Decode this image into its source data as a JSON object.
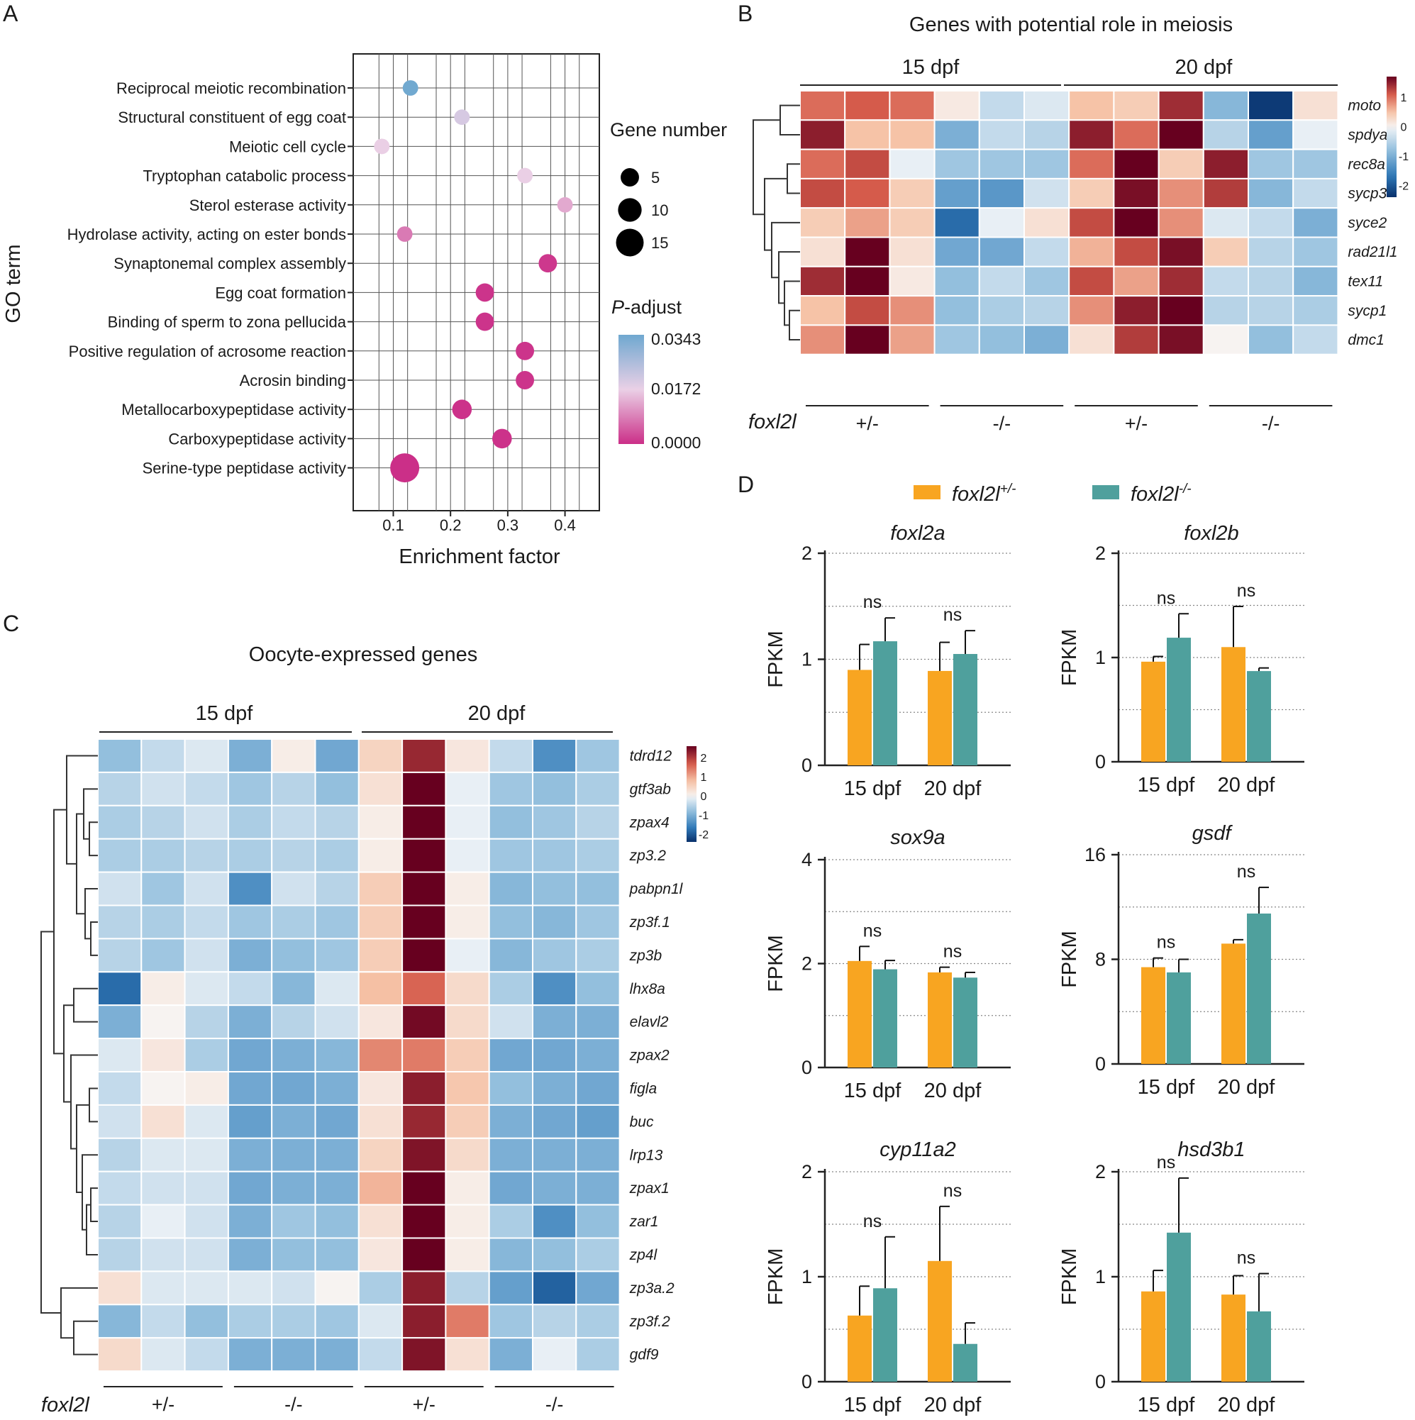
{
  "panel_labels": [
    "A",
    "B",
    "C",
    "D"
  ],
  "chart_data": [
    {
      "panel": "A",
      "type": "scatter",
      "xlabel": "Enrichment factor",
      "ylabel": "GO term",
      "xlim": [
        0.03,
        0.46
      ],
      "xticks": [
        "0.1",
        "0.2",
        "0.3",
        "0.4"
      ],
      "xtick_values": [
        0.1,
        0.2,
        0.3,
        0.4
      ],
      "grid": true,
      "categories": [
        "Reciprocal meiotic recombination",
        "Structural constituent of egg coat",
        "Meiotic cell cycle",
        "Tryptophan catabolic process",
        "Sterol esterase activity",
        "Hydrolase activity, acting on ester bonds",
        "Synaptonemal complex assembly",
        "Egg coat formation",
        "Binding of sperm to zona pellucida",
        "Positive regulation of acrosome reaction",
        "Acrosin binding",
        "Metallocarboxypeptidase activity",
        "Carboxypeptidase activity",
        "Serine-type peptidase activity"
      ],
      "x": [
        0.13,
        0.22,
        0.08,
        0.33,
        0.4,
        0.12,
        0.37,
        0.26,
        0.26,
        0.33,
        0.33,
        0.22,
        0.29,
        0.12
      ],
      "gene_number": [
        3,
        3,
        3,
        3,
        3,
        3,
        5,
        5,
        5,
        5,
        5,
        6,
        6,
        17
      ],
      "p_adjust": [
        0.034,
        0.02,
        0.017,
        0.017,
        0.013,
        0.008,
        0.001,
        0.0005,
        0.0005,
        0.0005,
        0.0005,
        0.0003,
        0.0003,
        0.0
      ],
      "size_legend": {
        "title": "Gene number",
        "values": [
          5,
          10,
          15
        ]
      },
      "color_legend": {
        "title_italic": "P",
        "title_rest": "-adjust",
        "values": [
          "0.0343",
          "0.0172",
          "0.0000"
        ],
        "colors": [
          "#6fa8d0",
          "#ead0e6",
          "#cb2f88"
        ]
      }
    },
    {
      "panel": "B",
      "type": "heatmap",
      "title": "Genes with potential role in meiosis",
      "group_labels": [
        "15 dpf",
        "20 dpf"
      ],
      "genotype_label": "foxl2l",
      "genotypes": [
        "+/-",
        "-/-",
        "+/-",
        "-/-"
      ],
      "rows": [
        "moto",
        "spdya",
        "rec8a",
        "sycp3",
        "syce2",
        "rad21l1",
        "tex11",
        "sycp1",
        "dmc1"
      ],
      "values": [
        [
          1.0,
          1.1,
          1.0,
          0.1,
          -0.4,
          -0.2,
          0.5,
          0.4,
          1.4,
          -0.9,
          -2.3,
          0.2
        ],
        [
          1.5,
          0.5,
          0.5,
          -1.0,
          -0.4,
          -0.5,
          1.5,
          1.0,
          1.8,
          -0.5,
          -1.2,
          -0.1
        ],
        [
          1.0,
          1.2,
          -0.1,
          -0.7,
          -0.7,
          -0.7,
          1.0,
          2.0,
          0.4,
          1.5,
          -0.7,
          -0.7
        ],
        [
          1.2,
          1.1,
          0.4,
          -1.2,
          -1.3,
          -0.3,
          0.4,
          1.6,
          0.8,
          1.3,
          -0.9,
          -0.4
        ],
        [
          0.4,
          0.7,
          0.4,
          -1.8,
          -0.1,
          0.2,
          1.2,
          2.5,
          0.8,
          -0.2,
          -0.4,
          -1.0
        ],
        [
          0.2,
          2.1,
          0.2,
          -1.1,
          -1.1,
          -0.4,
          0.6,
          1.2,
          1.6,
          0.4,
          -0.5,
          -0.7
        ],
        [
          1.4,
          2.3,
          0.1,
          -0.8,
          -0.4,
          -0.7,
          1.2,
          0.7,
          1.4,
          -0.4,
          -0.5,
          -0.9
        ],
        [
          0.5,
          1.2,
          0.8,
          -0.8,
          -0.6,
          -0.5,
          0.8,
          1.5,
          2.0,
          -0.5,
          -0.5,
          -0.6
        ],
        [
          0.8,
          1.8,
          0.7,
          -0.7,
          -0.8,
          -1.0,
          0.2,
          1.3,
          1.6,
          0.0,
          -0.8,
          -0.4
        ]
      ],
      "colorbar": {
        "ticks": [
          "1",
          "0",
          "-1",
          "-2"
        ],
        "values": [
          1,
          0,
          -1,
          -2
        ],
        "range": [
          -2.4,
          1.7
        ]
      }
    },
    {
      "panel": "C",
      "type": "heatmap",
      "title": "Oocyte-expressed genes",
      "group_labels": [
        "15 dpf",
        "20 dpf"
      ],
      "genotype_label": "foxl2l",
      "genotypes": [
        "+/-",
        "-/-",
        "+/-",
        "-/-"
      ],
      "rows": [
        "tdrd12",
        "gtf3ab",
        "zpax4",
        "zp3.2",
        "pabpn1l",
        "zp3f.1",
        "zp3b",
        "lhx8a",
        "elavl2",
        "zpax2",
        "figla",
        "buc",
        "lrp13",
        "zpax1",
        "zar1",
        "zp4l",
        "zp3a.2",
        "zp3f.2",
        "gdf9"
      ],
      "values": [
        [
          -0.8,
          -0.4,
          -0.2,
          -1.0,
          0.1,
          -1.1,
          0.5,
          2.2,
          0.2,
          -0.4,
          -1.4,
          -0.7
        ],
        [
          -0.5,
          -0.3,
          -0.4,
          -0.7,
          -0.5,
          -0.8,
          0.3,
          3.0,
          -0.1,
          -0.7,
          -0.8,
          -0.6
        ],
        [
          -0.6,
          -0.5,
          -0.3,
          -0.6,
          -0.4,
          -0.5,
          0.1,
          3.0,
          -0.1,
          -0.8,
          -0.7,
          -0.5
        ],
        [
          -0.6,
          -0.6,
          -0.5,
          -0.6,
          -0.5,
          -0.6,
          0.1,
          3.0,
          -0.1,
          -0.7,
          -0.7,
          -0.6
        ],
        [
          -0.3,
          -0.7,
          -0.3,
          -1.4,
          -0.3,
          -0.5,
          0.6,
          2.8,
          0.1,
          -0.9,
          -0.8,
          -0.8
        ],
        [
          -0.5,
          -0.6,
          -0.4,
          -0.7,
          -0.6,
          -0.7,
          0.6,
          3.0,
          0.1,
          -0.8,
          -0.9,
          -0.7
        ],
        [
          -0.5,
          -0.7,
          -0.3,
          -1.0,
          -0.8,
          -0.7,
          0.6,
          3.0,
          -0.1,
          -0.9,
          -0.7,
          -0.6
        ],
        [
          -1.8,
          0.1,
          -0.2,
          -0.4,
          -0.9,
          -0.2,
          0.8,
          1.6,
          0.4,
          -0.6,
          -1.4,
          -0.8
        ],
        [
          -1.0,
          0.0,
          -0.5,
          -1.0,
          -0.5,
          -0.3,
          0.2,
          2.5,
          0.4,
          -0.3,
          -1.0,
          -1.0
        ],
        [
          -0.2,
          0.2,
          -0.6,
          -1.1,
          -1.0,
          -0.9,
          1.3,
          1.4,
          0.6,
          -1.1,
          -1.1,
          -1.0
        ],
        [
          -0.4,
          0.0,
          0.1,
          -1.1,
          -1.1,
          -1.0,
          0.2,
          2.3,
          0.7,
          -0.8,
          -1.0,
          -1.1
        ],
        [
          -0.3,
          0.3,
          -0.2,
          -1.2,
          -1.0,
          -1.1,
          0.3,
          2.2,
          0.6,
          -1.0,
          -1.1,
          -1.2
        ],
        [
          -0.5,
          -0.2,
          -0.2,
          -1.0,
          -1.0,
          -1.0,
          0.5,
          2.4,
          0.4,
          -1.0,
          -1.0,
          -1.0
        ],
        [
          -0.4,
          -0.3,
          -0.3,
          -1.1,
          -1.0,
          -1.0,
          0.9,
          2.6,
          0.1,
          -1.1,
          -1.0,
          -1.0
        ],
        [
          -0.5,
          -0.1,
          -0.3,
          -1.0,
          -0.7,
          -0.8,
          0.3,
          3.0,
          0.1,
          -0.6,
          -1.4,
          -0.8
        ],
        [
          -0.5,
          -0.3,
          -0.3,
          -1.0,
          -0.8,
          -0.8,
          0.2,
          3.0,
          0.1,
          -0.9,
          -0.8,
          -0.6
        ],
        [
          0.3,
          -0.2,
          -0.2,
          -0.2,
          -0.3,
          0.0,
          -0.6,
          2.3,
          -0.5,
          -1.2,
          -1.9,
          -1.1
        ],
        [
          -0.9,
          -0.4,
          -0.8,
          -0.6,
          -0.6,
          -0.7,
          -0.2,
          2.3,
          1.4,
          -0.7,
          -0.5,
          -0.6
        ],
        [
          0.4,
          -0.2,
          -0.4,
          -1.0,
          -1.0,
          -1.0,
          -0.4,
          2.4,
          0.3,
          -1.0,
          -0.1,
          -0.6
        ]
      ],
      "colorbar": {
        "ticks": [
          "2",
          "1",
          "0",
          "-1",
          "-2"
        ],
        "values": [
          2,
          1,
          0,
          -1,
          -2
        ],
        "range": [
          -2.4,
          2.6
        ]
      }
    },
    {
      "panel": "D",
      "type": "bar",
      "legend": [
        {
          "base": "foxl2l",
          "sup": "+/-",
          "color": "#f8a521"
        },
        {
          "base": "foxl2l",
          "sup": "-/-",
          "color": "#4fa09d"
        }
      ],
      "categories": [
        "15 dpf",
        "20 dpf"
      ],
      "ylabel": "FPKM",
      "subplots": [
        {
          "title": "foxl2a",
          "ylim": [
            0,
            2
          ],
          "yticks": [
            "0",
            "1",
            "2"
          ],
          "ytick_values": [
            0,
            1,
            2
          ],
          "grid": [
            0.5,
            1,
            1.5,
            2
          ],
          "het": [
            0.9,
            0.89
          ],
          "het_err": [
            0.24,
            0.27
          ],
          "ko": [
            1.17,
            1.05
          ],
          "ko_err": [
            0.22,
            0.22
          ],
          "sig": [
            "ns",
            "ns"
          ]
        },
        {
          "title": "foxl2b",
          "ylim": [
            0,
            2
          ],
          "yticks": [
            "0",
            "1",
            "2"
          ],
          "ytick_values": [
            0,
            1,
            2
          ],
          "grid": [
            0.5,
            1,
            1.5,
            2
          ],
          "het": [
            0.96,
            1.1
          ],
          "het_err": [
            0.05,
            0.39
          ],
          "ko": [
            1.19,
            0.87
          ],
          "ko_err": [
            0.23,
            0.03
          ],
          "sig": [
            "ns",
            "ns"
          ]
        },
        {
          "title": "sox9a",
          "ylim": [
            0,
            4
          ],
          "yticks": [
            "0",
            "2",
            "4"
          ],
          "ytick_values": [
            0,
            2,
            4
          ],
          "grid": [
            1,
            2,
            3,
            4
          ],
          "het": [
            2.05,
            1.83
          ],
          "het_err": [
            0.28,
            0.1
          ],
          "ko": [
            1.89,
            1.73
          ],
          "ko_err": [
            0.17,
            0.1
          ],
          "sig": [
            "ns",
            "ns"
          ]
        },
        {
          "title": "gsdf",
          "ylim": [
            0,
            16
          ],
          "yticks": [
            "0",
            "8",
            "16"
          ],
          "ytick_values": [
            0,
            8,
            16
          ],
          "grid": [
            4,
            8,
            12,
            16
          ],
          "het": [
            7.4,
            9.2
          ],
          "het_err": [
            0.7,
            0.3
          ],
          "ko": [
            7.0,
            11.5
          ],
          "ko_err": [
            1.0,
            2.0
          ],
          "sig": [
            "ns",
            "ns"
          ]
        },
        {
          "title": "cyp11a2",
          "ylim": [
            0,
            2
          ],
          "yticks": [
            "0",
            "1",
            "2"
          ],
          "ytick_values": [
            0,
            1,
            2
          ],
          "grid": [
            0.5,
            1,
            1.5,
            2
          ],
          "het": [
            0.63,
            1.15
          ],
          "het_err": [
            0.28,
            0.52
          ],
          "ko": [
            0.89,
            0.36
          ],
          "ko_err": [
            0.49,
            0.2
          ],
          "sig": [
            "ns",
            "ns"
          ]
        },
        {
          "title": "hsd3b1",
          "ylim": [
            0,
            2
          ],
          "yticks": [
            "0",
            "1",
            "2"
          ],
          "ytick_values": [
            0,
            1,
            2
          ],
          "grid": [
            0.5,
            1,
            1.5,
            2
          ],
          "het": [
            0.86,
            0.83
          ],
          "het_err": [
            0.2,
            0.18
          ],
          "ko": [
            1.42,
            0.67
          ],
          "ko_err": [
            0.52,
            0.36
          ],
          "sig": [
            "ns",
            "ns"
          ]
        }
      ]
    }
  ]
}
